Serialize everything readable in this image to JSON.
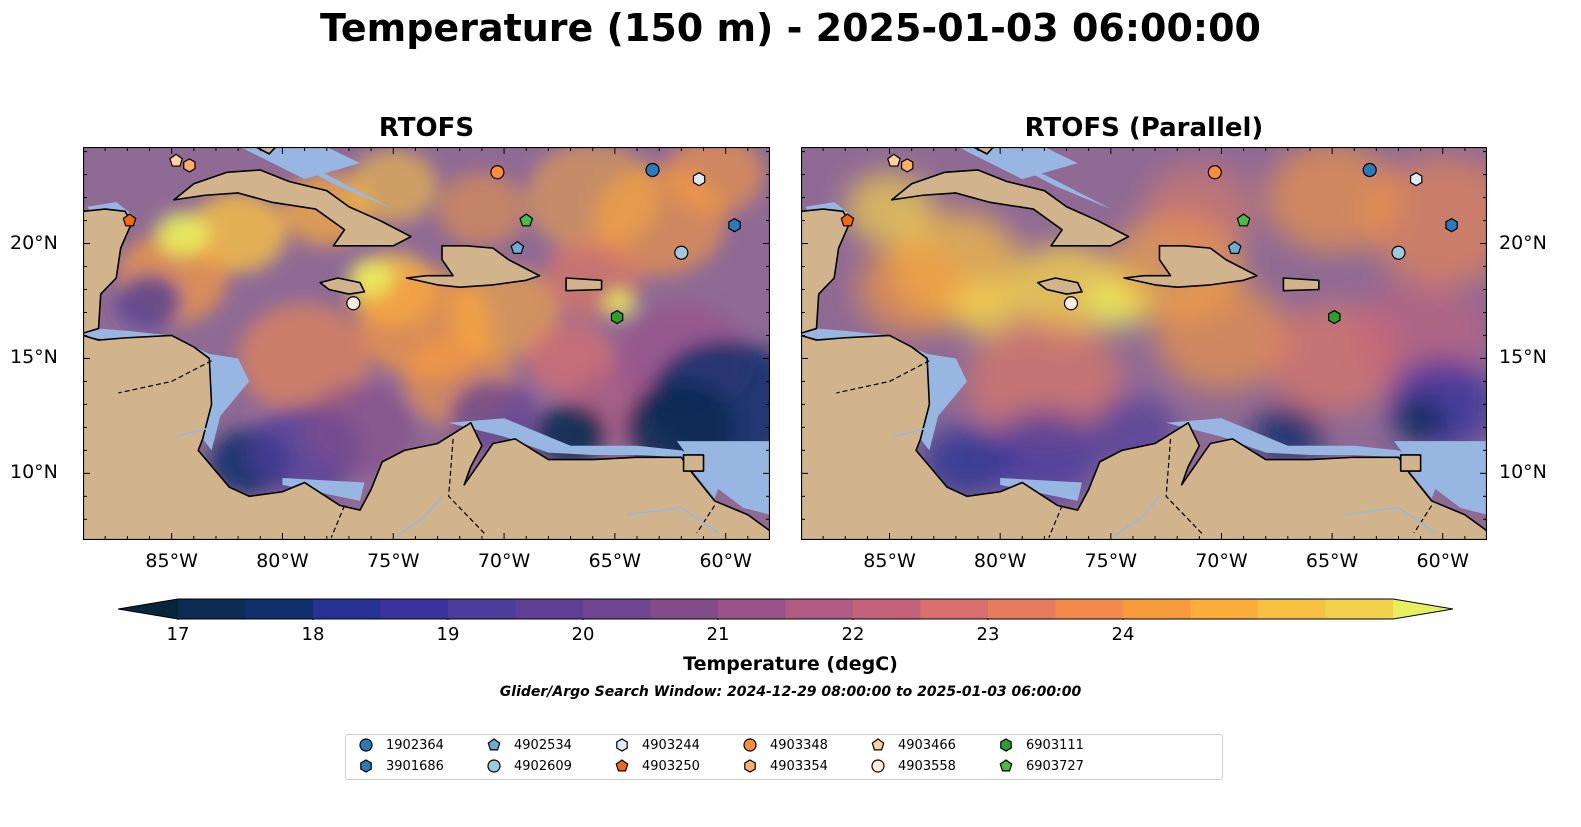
{
  "figure": {
    "title": "Temperature (150 m) - 2025-01-03 06:00:00",
    "panels": [
      {
        "title": "RTOFS",
        "variant": "fine"
      },
      {
        "title": "RTOFS (Parallel)",
        "variant": "smooth"
      }
    ],
    "lon_labels": [
      "85°W",
      "80°W",
      "75°W",
      "70°W",
      "65°W",
      "60°W"
    ],
    "lat_labels": [
      "20°N",
      "15°N",
      "10°N"
    ],
    "colorbar": {
      "label": "Temperature (degC)",
      "ticks": [
        "17",
        "18",
        "19",
        "20",
        "21",
        "22",
        "23",
        "24"
      ],
      "min": 16.5,
      "max": 24.5,
      "levels_step": 0.5,
      "extend": "both",
      "colors": [
        "#07263a",
        "#0b2b53",
        "#122f6d",
        "#273393",
        "#3a339e",
        "#4c3d9a",
        "#5e3f96",
        "#70448e",
        "#844b8b",
        "#99538a",
        "#b05b82",
        "#c4627c",
        "#d86f6d",
        "#e77c5d",
        "#f28a4c",
        "#f89b3e",
        "#fbae3b",
        "#f7c144",
        "#f2d24c",
        "#e8ef5e"
      ]
    },
    "search_window": "Glider/Argo Search Window: 2024-12-29 08:00:00 to 2025-01-03 06:00:00",
    "colors": {
      "ocean_fill": "#8f6a95",
      "shelf": "#97b6e2",
      "land": "#d2b48c",
      "deep_cold": "#07263a"
    }
  },
  "legend": [
    {
      "id": "1902364",
      "marker": "circle",
      "color": "#2b7bba"
    },
    {
      "id": "3901686",
      "marker": "hexagon",
      "color": "#2b7bba"
    },
    {
      "id": "4902534",
      "marker": "pentagon",
      "color": "#6aaed6"
    },
    {
      "id": "4902609",
      "marker": "circle",
      "color": "#9ecae1"
    },
    {
      "id": "4903244",
      "marker": "hexagon",
      "color": "#deebf7"
    },
    {
      "id": "4903250",
      "marker": "pentagon",
      "color": "#f16913"
    },
    {
      "id": "4903348",
      "marker": "circle",
      "color": "#fd8d3c"
    },
    {
      "id": "4903354",
      "marker": "hexagon",
      "color": "#fdae6b"
    },
    {
      "id": "4903466",
      "marker": "pentagon",
      "color": "#fdd0a2"
    },
    {
      "id": "4903558",
      "marker": "circle",
      "color": "#feedde"
    },
    {
      "id": "6903111",
      "marker": "hexagon",
      "color": "#2ca02c"
    },
    {
      "id": "6903727",
      "marker": "pentagon",
      "color": "#4cbb44"
    }
  ],
  "floats": [
    {
      "id": "4903466",
      "lon": -84.8,
      "lat": 23.6
    },
    {
      "id": "4903354",
      "lon": -84.2,
      "lat": 23.4
    },
    {
      "id": "4903250",
      "lon": -86.9,
      "lat": 21.0
    },
    {
      "id": "4903558",
      "lon": -76.8,
      "lat": 17.4
    },
    {
      "id": "4903348",
      "lon": -70.3,
      "lat": 23.1
    },
    {
      "id": "6903727",
      "lon": -69.0,
      "lat": 21.0
    },
    {
      "id": "4902534",
      "lon": -69.4,
      "lat": 19.8
    },
    {
      "id": "1902364",
      "lon": -63.3,
      "lat": 23.2
    },
    {
      "id": "4903244",
      "lon": -61.2,
      "lat": 22.8
    },
    {
      "id": "3901686",
      "lon": -59.6,
      "lat": 20.8
    },
    {
      "id": "4902609",
      "lon": -62.0,
      "lat": 19.6
    },
    {
      "id": "6903111",
      "lon": -64.9,
      "lat": 16.8
    }
  ]
}
